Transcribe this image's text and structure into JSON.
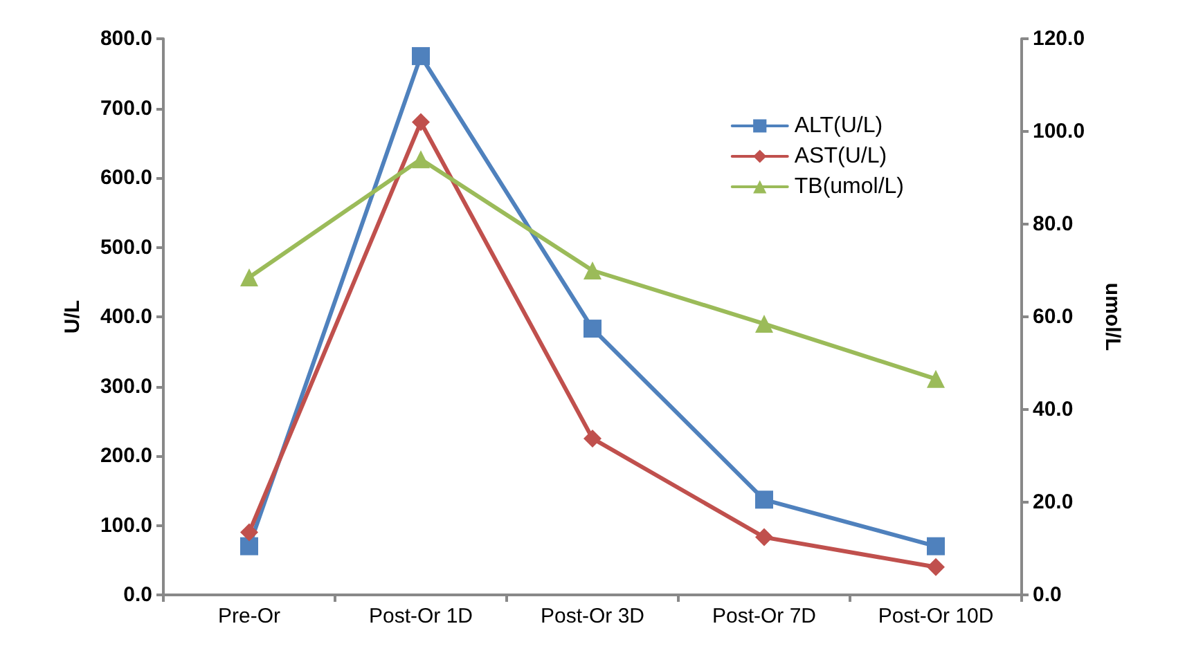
{
  "chart_data": {
    "type": "line",
    "ylabel": "U/L",
    "y2label": "umol/L",
    "categories": [
      "Pre-Or",
      "Post-Or 1D",
      "Post-Or 3D",
      "Post-Or 7D",
      "Post-Or 10D"
    ],
    "series": [
      {
        "name": "ALT(U/L)",
        "color": "#4f81bd",
        "marker": "square",
        "values": [
          70,
          775,
          383,
          137,
          70
        ]
      },
      {
        "name": "AST(U/L)",
        "color": "#c0504d",
        "marker": "diamond",
        "values": [
          90,
          680,
          225,
          83,
          40
        ]
      },
      {
        "name": "TB(umol/L)",
        "color": "#9bbb59",
        "marker": "triangle",
        "axis": "y2",
        "values": [
          68.5,
          94,
          70,
          58.5,
          46.6
        ]
      }
    ],
    "ylim": [
      0,
      800
    ],
    "yticks": [
      {
        "value": 0,
        "label": "0.0"
      },
      {
        "value": 100,
        "label": "100.0"
      },
      {
        "value": 200,
        "label": "200.0"
      },
      {
        "value": 300,
        "label": "300.0"
      },
      {
        "value": 400,
        "label": "400.0"
      },
      {
        "value": 500,
        "label": "500.0"
      },
      {
        "value": 600,
        "label": "600.0"
      },
      {
        "value": 700,
        "label": "700.0"
      },
      {
        "value": 800,
        "label": "800.0"
      }
    ],
    "y2lim": [
      0,
      120
    ],
    "y2ticks": [
      {
        "value": 0,
        "label": "0.0"
      },
      {
        "value": 20,
        "label": "20.0"
      },
      {
        "value": 40,
        "label": "40.0"
      },
      {
        "value": 60,
        "label": "60.0"
      },
      {
        "value": 80,
        "label": "80.0"
      },
      {
        "value": 100,
        "label": "100.0"
      },
      {
        "value": 120,
        "label": "120.0"
      }
    ],
    "legend": "top right",
    "grid": false,
    "line_style": "solid"
  }
}
